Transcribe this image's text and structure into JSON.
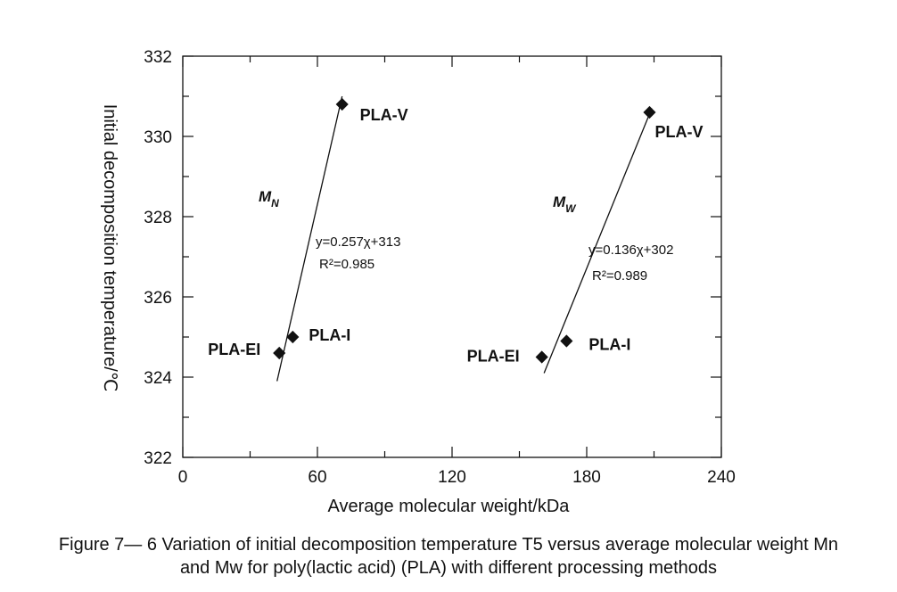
{
  "chart_data": {
    "type": "scatter",
    "xlabel": "Average molecular weight/kDa",
    "ylabel": "Initial decomposition temperature/℃",
    "xlim": [
      0,
      240
    ],
    "ylim": [
      322,
      332
    ],
    "x_ticks": [
      0,
      60,
      120,
      180,
      240
    ],
    "y_ticks": [
      322,
      324,
      326,
      328,
      330,
      332
    ],
    "grid": false,
    "series": [
      {
        "name": "M",
        "subscript": "N",
        "points": [
          {
            "label": "PLA-EI",
            "x": 43,
            "y": 324.6
          },
          {
            "label": "PLA-I",
            "x": 49,
            "y": 325.0
          },
          {
            "label": "PLA-V",
            "x": 71,
            "y": 330.8
          }
        ],
        "fit": {
          "equation": "y=0.257χ+313",
          "r2": "R²=0.985",
          "x_start": 42,
          "y_start": 323.9,
          "x_end": 71,
          "y_end": 331.0
        }
      },
      {
        "name": "M",
        "subscript": "W",
        "points": [
          {
            "label": "PLA-EI",
            "x": 160,
            "y": 324.5
          },
          {
            "label": "PLA-I",
            "x": 171,
            "y": 324.9
          },
          {
            "label": "PLA-V",
            "x": 208,
            "y": 330.6
          }
        ],
        "fit": {
          "equation": "y=0.136χ+302",
          "r2": "R²=0.989",
          "x_start": 161,
          "y_start": 324.1,
          "x_end": 209,
          "y_end": 330.7
        }
      }
    ]
  },
  "caption": {
    "line1": "Figure 7— 6 Variation of initial decomposition temperature T5 versus average molecular weight Mn",
    "line2": "and Mw for poly(lactic acid) (PLA) with different processing methods"
  }
}
